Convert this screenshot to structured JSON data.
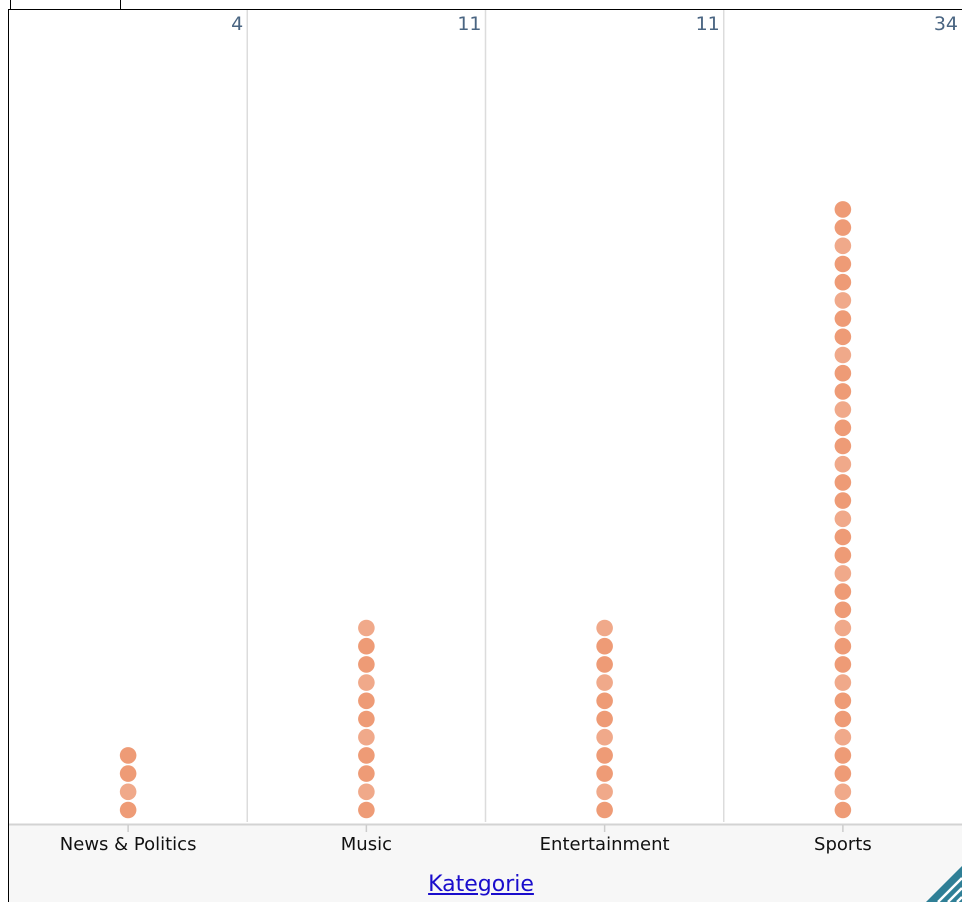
{
  "chart_data": {
    "type": "dot",
    "categories": [
      "News & Politics",
      "Music",
      "Entertainment",
      "Sports"
    ],
    "values": [
      4,
      11,
      11,
      34
    ],
    "xlabel": "Kategorie",
    "dot_color": "#ee9b76",
    "dot_color_alt": "#f0a98a",
    "count_label_color": "#4a6582",
    "axis_title_color": "#1a0dcc"
  }
}
